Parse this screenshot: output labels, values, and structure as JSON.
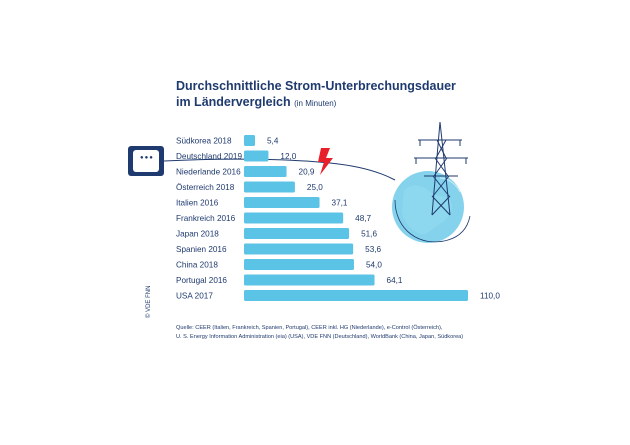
{
  "title": {
    "line1": "Durchschnittliche Strom-Unterbrechungsdauer",
    "line2": "im Ländervergleich",
    "unit": "(in Minuten)"
  },
  "chart_data": {
    "type": "bar",
    "orientation": "horizontal",
    "categories": [
      "Südkorea 2018",
      "Deutschland 2019",
      "Niederlande 2016",
      "Österreich 2018",
      "Italien 2016",
      "Frankreich 2016",
      "Japan 2018",
      "Spanien 2016",
      "China 2018",
      "Portugal 2016",
      "USA 2017"
    ],
    "values": [
      5.4,
      12.0,
      20.9,
      25.0,
      37.1,
      48.7,
      51.6,
      53.6,
      54.0,
      64.1,
      110.0
    ],
    "value_labels": [
      "5,4",
      "12,0",
      "20,9",
      "25,0",
      "37,1",
      "48,7",
      "51,6",
      "53,6",
      "54,0",
      "64,1",
      "110,0"
    ],
    "xlim": [
      0,
      110
    ],
    "grid": false,
    "bar_color": "#5bc3e6",
    "text_color": "#1f3a6e"
  },
  "source": {
    "line1": "Quelle: CEER (Italien, Frankreich, Spanien, Portugal), CEER inkl. HG (Niederlande), e-Control (Österreich),",
    "line2": "U. S. Energy Information Administration (eia) (USA), VDE FNN (Deutschland), WorldBank (China, Japan, Südkorea)"
  },
  "credit": "© VDE FNN",
  "icons": {
    "socket": "power-socket-icon",
    "lightning": "lightning-icon",
    "tower": "power-tower-icon",
    "globe": "globe-icon"
  },
  "colors": {
    "lightning": "#e8202a",
    "globe": "#5bc3e6",
    "navy": "#1f3a6e"
  }
}
